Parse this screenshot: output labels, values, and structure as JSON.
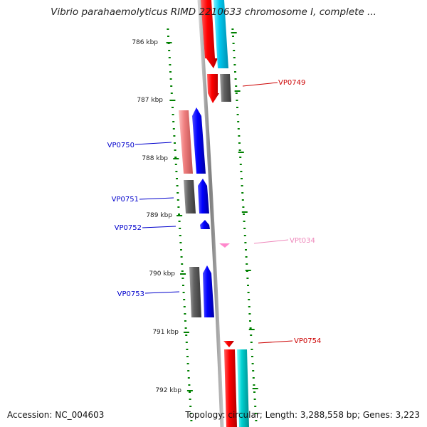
{
  "title": "Vibrio parahaemolyticus RIMD 2210633 chromosome I, complete ...",
  "scale_labels": [
    "786 kbp",
    "787 kbp",
    "788 kbp",
    "789 kbp",
    "790 kbp",
    "791 kbp",
    "792 kbp"
  ],
  "genes": [
    {
      "label": "VP0749",
      "color": "#cc0000"
    },
    {
      "label": "VP0750",
      "color": "#0000cc"
    },
    {
      "label": "VP0751",
      "color": "#0000cc"
    },
    {
      "label": "VP0752",
      "color": "#0000cc"
    },
    {
      "label": "VPt034",
      "color": "#ee88bb"
    },
    {
      "label": "VP0753",
      "color": "#0000cc"
    },
    {
      "label": "VP0754",
      "color": "#cc0000"
    }
  ],
  "colors": {
    "forward_cds": "#ff0000",
    "reverse_cds": "#0000ff",
    "forward_light": "#f08080",
    "cyan": "#00d0d0",
    "gray": "#606060",
    "trna": "#ff88cc",
    "tick": "#008000"
  },
  "footer": {
    "accession": "Accession: NC_004603",
    "topology": "Topology: circular; Length: 3,288,558 bp; Genes: 3,223"
  }
}
